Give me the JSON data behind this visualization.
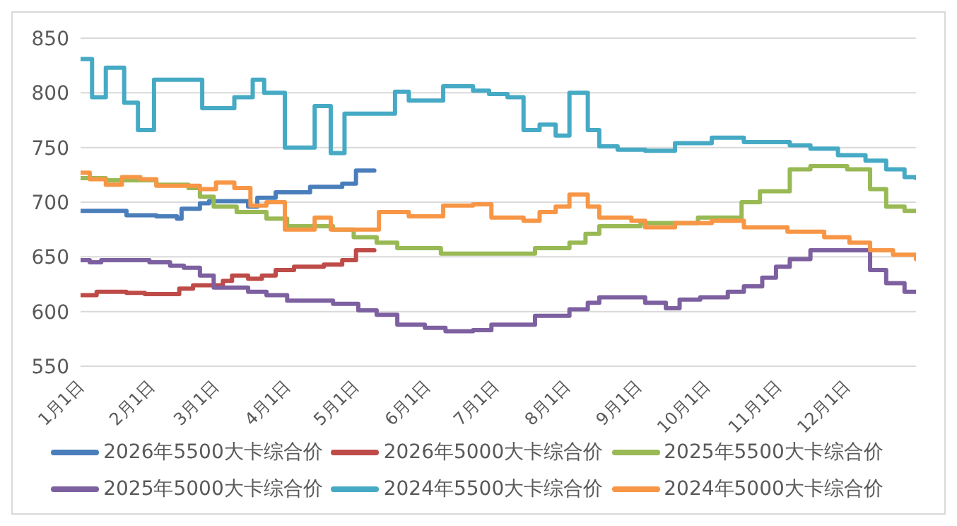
{
  "chart_data": {
    "type": "step",
    "xlim": [
      "--01-01",
      "--12-31"
    ],
    "xticks": [
      {
        "value": "--01-01",
        "label": "1月1日"
      },
      {
        "value": "--02-01",
        "label": "2月1日"
      },
      {
        "value": "--03-01",
        "label": "3月1日"
      },
      {
        "value": "--04-01",
        "label": "4月1日"
      },
      {
        "value": "--05-01",
        "label": "5月1日"
      },
      {
        "value": "--06-01",
        "label": "6月1日"
      },
      {
        "value": "--07-01",
        "label": "7月1日"
      },
      {
        "value": "--08-01",
        "label": "8月1日"
      },
      {
        "value": "--09-01",
        "label": "9月1日"
      },
      {
        "value": "--10-01",
        "label": "10月1日"
      },
      {
        "value": "--11-01",
        "label": "11月1日"
      },
      {
        "value": "--12-01",
        "label": "12月1日"
      }
    ],
    "ylim": [
      550,
      850
    ],
    "yticks": [
      550,
      600,
      650,
      700,
      750,
      800,
      850
    ],
    "grid": "y",
    "legend": "bottom",
    "series": [
      {
        "name": "2026年5500大卡综合价",
        "color": "#4a7ebb",
        "x": [
          "--01-01",
          "--01-21",
          "--02-03",
          "--02-12",
          "--02-14",
          "--02-22",
          "--02-26",
          "--03-15",
          "--03-19",
          "--03-27",
          "--04-11",
          "--04-25",
          "--05-01",
          "--05-09"
        ],
        "values": [
          692,
          688,
          687,
          685,
          694,
          699,
          701,
          696,
          704,
          709,
          714,
          717,
          729,
          729
        ]
      },
      {
        "name": "2026年5000大卡综合价",
        "color": "#be4b48",
        "x": [
          "--01-01",
          "--01-08",
          "--01-21",
          "--01-29",
          "--02-13",
          "--02-19",
          "--03-04",
          "--03-08",
          "--03-15",
          "--03-21",
          "--03-27",
          "--04-04",
          "--04-17",
          "--04-25",
          "--05-01",
          "--05-09"
        ],
        "values": [
          615,
          618,
          617,
          616,
          621,
          624,
          628,
          633,
          630,
          633,
          638,
          641,
          643,
          647,
          656,
          656
        ]
      },
      {
        "name": "2025年5500大卡综合价",
        "color": "#98b954",
        "x": [
          "--01-01",
          "--01-12",
          "--02-03",
          "--02-17",
          "--02-22",
          "--02-28",
          "--03-10",
          "--03-23",
          "--04-01",
          "--04-21",
          "--04-30",
          "--05-10",
          "--05-19",
          "--06-07",
          "--07-18",
          "--08-02",
          "--08-09",
          "--08-15",
          "--09-02",
          "--09-27",
          "--10-16",
          "--10-24",
          "--11-06",
          "--11-15",
          "--12-01",
          "--12-11",
          "--12-18",
          "--12-26",
          "--12-31"
        ],
        "values": [
          722,
          720,
          716,
          713,
          705,
          696,
          691,
          685,
          678,
          675,
          668,
          663,
          658,
          653,
          658,
          663,
          671,
          678,
          681,
          686,
          700,
          710,
          730,
          733,
          730,
          712,
          696,
          692,
          692
        ]
      },
      {
        "name": "2025年5000大卡综合价",
        "color": "#7d60a0",
        "x": [
          "--01-01",
          "--01-05",
          "--01-10",
          "--01-31",
          "--02-09",
          "--02-15",
          "--02-22",
          "--02-28",
          "--03-15",
          "--03-23",
          "--04-01",
          "--04-21",
          "--05-02",
          "--05-10",
          "--05-19",
          "--05-31",
          "--06-09",
          "--06-21",
          "--06-29",
          "--07-18",
          "--08-02",
          "--08-10",
          "--08-15",
          "--09-04",
          "--09-13",
          "--09-19",
          "--09-28",
          "--10-10",
          "--10-17",
          "--10-25",
          "--10-31",
          "--11-06",
          "--11-15",
          "--12-11",
          "--12-18",
          "--12-26",
          "--12-31"
        ],
        "values": [
          647,
          645,
          647,
          645,
          642,
          640,
          633,
          622,
          618,
          615,
          610,
          607,
          601,
          597,
          588,
          585,
          582,
          583,
          588,
          596,
          602,
          608,
          613,
          608,
          603,
          611,
          613,
          618,
          623,
          631,
          641,
          648,
          656,
          638,
          626,
          618,
          618
        ]
      },
      {
        "name": "2024年5500大卡综合价",
        "color": "#46aac5",
        "x": [
          "--01-01",
          "--01-06",
          "--01-12",
          "--01-20",
          "--01-26",
          "--02-02",
          "--02-23",
          "--03-09",
          "--03-17",
          "--03-22",
          "--03-31",
          "--04-13",
          "--04-20",
          "--04-26",
          "--05-18",
          "--05-24",
          "--06-08",
          "--06-21",
          "--06-28",
          "--07-06",
          "--07-13",
          "--07-20",
          "--07-27",
          "--08-02",
          "--08-10",
          "--08-15",
          "--08-23",
          "--09-04",
          "--09-17",
          "--10-03",
          "--10-17",
          "--11-06",
          "--11-15",
          "--11-27",
          "--12-09",
          "--12-18",
          "--12-26",
          "--12-31"
        ],
        "values": [
          831,
          796,
          823,
          791,
          766,
          812,
          786,
          796,
          812,
          800,
          750,
          788,
          745,
          781,
          801,
          793,
          806,
          802,
          799,
          796,
          766,
          771,
          761,
          800,
          766,
          751,
          748,
          747,
          754,
          759,
          755,
          752,
          749,
          743,
          738,
          730,
          723,
          722
        ]
      },
      {
        "name": "2024年5000大卡综合价",
        "color": "#f79646",
        "x": [
          "--01-01",
          "--01-05",
          "--01-12",
          "--01-19",
          "--01-27",
          "--02-03",
          "--02-22",
          "--03-01",
          "--03-09",
          "--03-16",
          "--03-23",
          "--03-31",
          "--04-13",
          "--04-20",
          "--05-11",
          "--05-24",
          "--06-08",
          "--06-21",
          "--06-29",
          "--07-13",
          "--07-20",
          "--07-27",
          "--08-02",
          "--08-10",
          "--08-15",
          "--08-29",
          "--09-04",
          "--09-17",
          "--10-03",
          "--10-17",
          "--11-05",
          "--11-21",
          "--12-02",
          "--12-11",
          "--12-21",
          "--12-31"
        ],
        "values": [
          727,
          721,
          716,
          723,
          721,
          715,
          712,
          718,
          713,
          697,
          700,
          675,
          686,
          675,
          691,
          687,
          697,
          698,
          686,
          683,
          691,
          696,
          707,
          696,
          686,
          683,
          677,
          681,
          683,
          677,
          673,
          668,
          663,
          656,
          652,
          648
        ]
      }
    ]
  }
}
